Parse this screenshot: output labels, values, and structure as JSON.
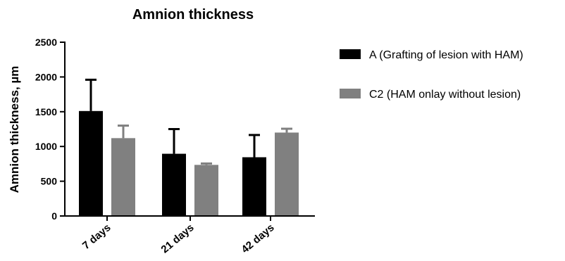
{
  "chart_data": {
    "type": "bar",
    "title": "Amnion thickness",
    "xlabel": "",
    "ylabel": "Amnion thickness, µm",
    "ylim": [
      0,
      2500
    ],
    "yticks": [
      "0",
      "500",
      "1000",
      "1500",
      "2000",
      "2500"
    ],
    "categories": [
      "7 days",
      "21 days",
      "42 days"
    ],
    "series": [
      {
        "name": "A (Grafting of lesion with HAM)",
        "color": "#000000",
        "values": [
          1510,
          895,
          845
        ],
        "errors": [
          450,
          355,
          320
        ]
      },
      {
        "name": "C2 (HAM onlay without lesion)",
        "color": "#808080",
        "values": [
          1120,
          735,
          1200
        ],
        "errors": [
          180,
          20,
          55
        ]
      }
    ],
    "legend_position": "right",
    "grid": false
  }
}
